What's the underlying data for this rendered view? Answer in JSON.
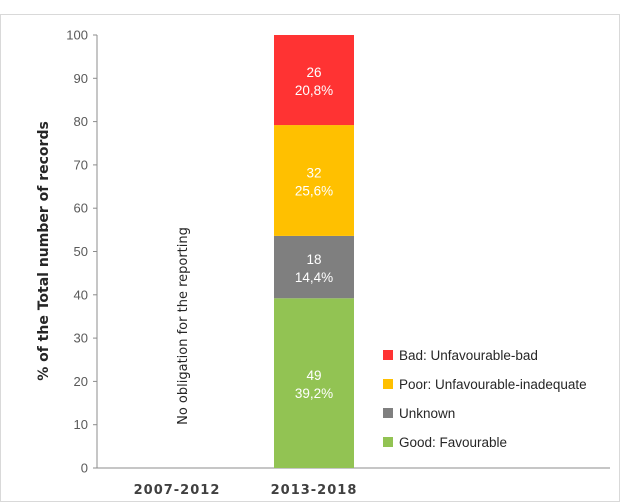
{
  "chart_data": {
    "type": "bar",
    "stacked": true,
    "categories": [
      "2007-2012",
      "2013-2018"
    ],
    "ylabel": "% of the Total number of records",
    "ylim": [
      0,
      100
    ],
    "yticks": [
      0,
      10,
      20,
      30,
      40,
      50,
      60,
      70,
      80,
      90,
      100
    ],
    "grid": false,
    "legend_position": "right",
    "annotation": "No obligation for the reporting",
    "series": [
      {
        "name": "Good: Favourable",
        "color": "#92c353",
        "values": [
          null,
          39.2
        ],
        "counts": [
          null,
          "49"
        ],
        "percents": [
          null,
          "39,2%"
        ]
      },
      {
        "name": "Unknown",
        "color": "#7f7f7f",
        "values": [
          null,
          14.4
        ],
        "counts": [
          null,
          "18"
        ],
        "percents": [
          null,
          "14,4%"
        ]
      },
      {
        "name": "Poor: Unfavourable-inadequate",
        "color": "#ffc000",
        "values": [
          null,
          25.6
        ],
        "counts": [
          null,
          "32"
        ],
        "percents": [
          null,
          "25,6%"
        ]
      },
      {
        "name": "Bad: Unfavourable-bad",
        "color": "#ff3333",
        "values": [
          null,
          20.8
        ],
        "counts": [
          null,
          "26"
        ],
        "percents": [
          null,
          "20,8%"
        ]
      }
    ]
  }
}
